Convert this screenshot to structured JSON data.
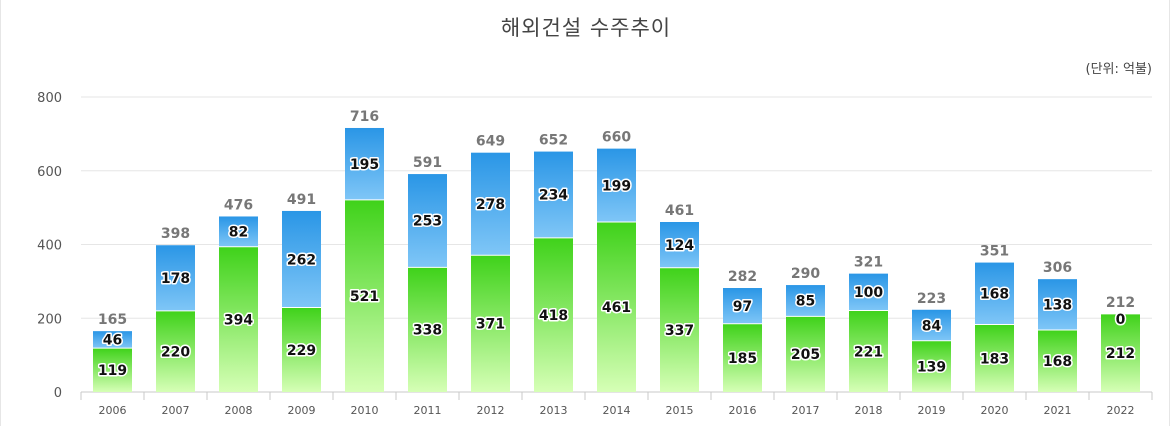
{
  "chart_data": {
    "type": "bar",
    "stacked": true,
    "title": "해외건설 수주추이",
    "unit_label": "(단위: 억불)",
    "categories": [
      "2006",
      "2007",
      "2008",
      "2009",
      "2010",
      "2011",
      "2012",
      "2013",
      "2014",
      "2015",
      "2016",
      "2017",
      "2018",
      "2019",
      "2020",
      "2021",
      "2022"
    ],
    "series": [
      {
        "values": [
          119,
          220,
          394,
          229,
          521,
          338,
          371,
          418,
          461,
          337,
          185,
          205,
          221,
          139,
          183,
          168,
          212
        ],
        "color": "#44d41c"
      },
      {
        "values": [
          46,
          178,
          82,
          262,
          195,
          253,
          278,
          234,
          199,
          124,
          97,
          85,
          100,
          84,
          168,
          138,
          0
        ],
        "color": "#2a9be8"
      }
    ],
    "totals": [
      165,
      398,
      476,
      491,
      716,
      591,
      649,
      652,
      660,
      461,
      282,
      290,
      321,
      223,
      351,
      306,
      212
    ],
    "ylim": [
      0,
      800
    ],
    "yticks": [
      0,
      200,
      400,
      600,
      800
    ],
    "grid": true,
    "xlabel": "",
    "ylabel": ""
  }
}
